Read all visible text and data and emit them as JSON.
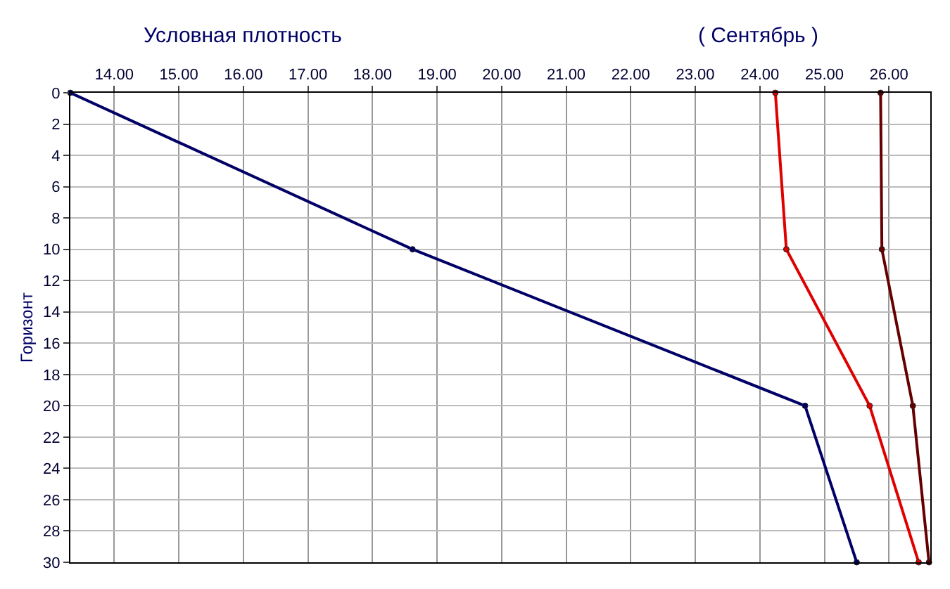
{
  "chart_data": {
    "type": "line",
    "title": "Условная плотность",
    "subtitle": "( Сентябрь )",
    "ylabel": "Горизонт",
    "xlim": [
      13.32,
      26.64
    ],
    "xticks": [
      {
        "value": 14,
        "label": "14.00"
      },
      {
        "value": 15,
        "label": "15.00"
      },
      {
        "value": 16,
        "label": "16.00"
      },
      {
        "value": 17,
        "label": "17.00"
      },
      {
        "value": 18,
        "label": "18.00"
      },
      {
        "value": 19,
        "label": "19.00"
      },
      {
        "value": 20,
        "label": "20.00"
      },
      {
        "value": 21,
        "label": "21.00"
      },
      {
        "value": 22,
        "label": "22.00"
      },
      {
        "value": 23,
        "label": "23.00"
      },
      {
        "value": 24,
        "label": "24.00"
      },
      {
        "value": 25,
        "label": "25.00"
      },
      {
        "value": 26,
        "label": "26.00"
      }
    ],
    "ylim": [
      30,
      0
    ],
    "yticks": [
      0,
      2,
      4,
      6,
      8,
      10,
      12,
      14,
      16,
      18,
      20,
      22,
      24,
      26,
      28,
      30
    ],
    "grid": true,
    "marker": "circle",
    "line_style": "solid",
    "series": [
      {
        "color": "#000066",
        "x": [
          13.32,
          18.62,
          24.7,
          25.5
        ],
        "values": [
          0,
          10,
          20,
          30
        ]
      },
      {
        "color": "#e00000",
        "x": [
          24.24,
          24.41,
          25.7,
          26.46
        ],
        "values": [
          0,
          10,
          20,
          30
        ]
      },
      {
        "color": "#660000",
        "x": [
          25.87,
          25.89,
          26.37,
          26.62
        ],
        "values": [
          0,
          10,
          20,
          30
        ]
      }
    ]
  }
}
